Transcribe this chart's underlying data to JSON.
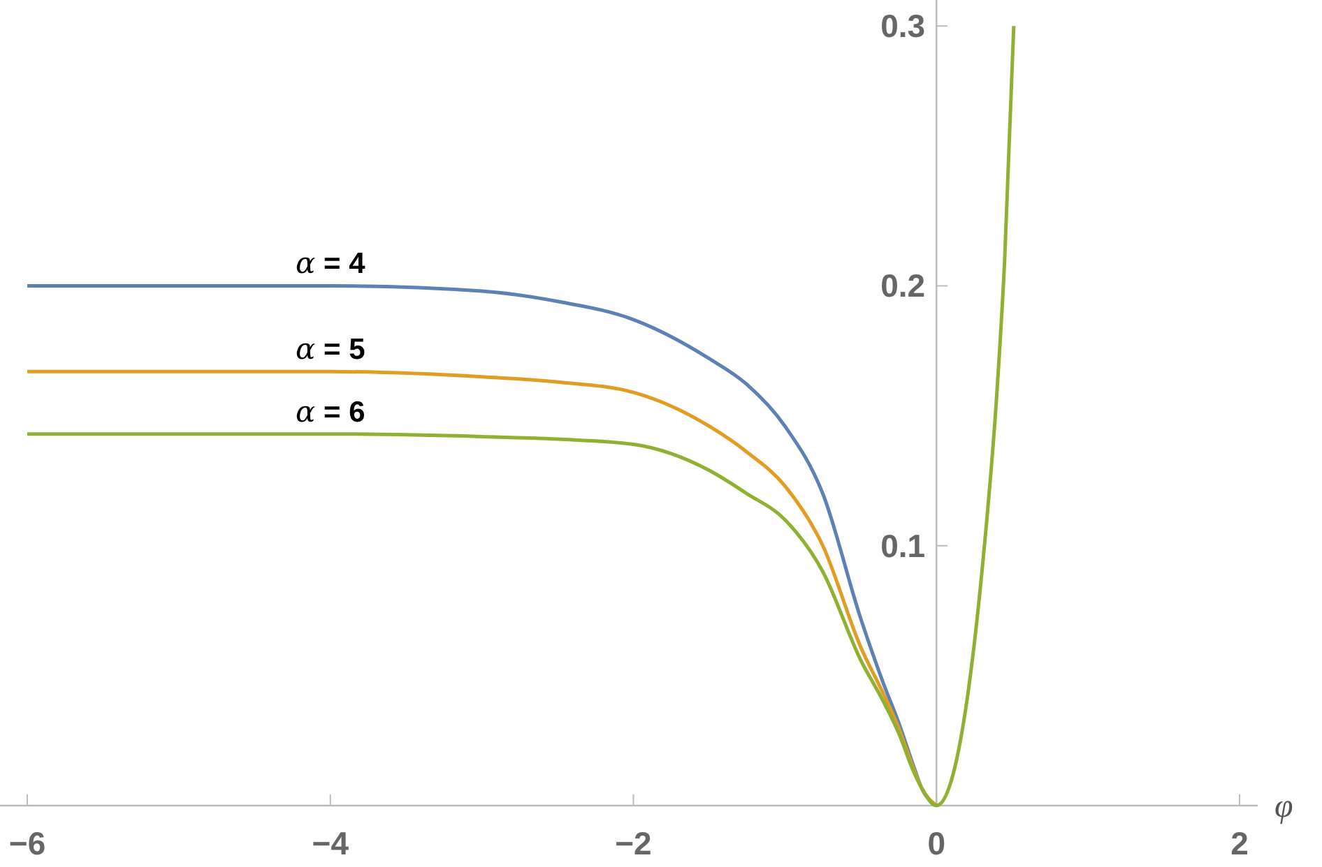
{
  "chart_data": {
    "type": "line",
    "xlabel": "φ",
    "x": [
      -6,
      -5,
      -4,
      -3,
      -2.5,
      -2,
      -1.5,
      -1.25,
      -1,
      -0.75,
      -0.5,
      -0.35,
      -0.25,
      -0.15,
      -0.1,
      0,
      0.1,
      0.2,
      0.3,
      0.4,
      0.45,
      0.51
    ],
    "series": [
      {
        "name": "α = 4",
        "color": "#5e81b5",
        "values": [
          0.2,
          0.2,
          0.2,
          0.198,
          0.194,
          0.187,
          0.172,
          0.162,
          0.146,
          0.12,
          0.072,
          0.047,
          0.032,
          0.015,
          0.007,
          0,
          null,
          null,
          null,
          null,
          null,
          null
        ]
      },
      {
        "name": "α = 5",
        "color": "#e19c24",
        "values": [
          0.167,
          0.167,
          0.167,
          0.165,
          0.163,
          0.159,
          0.146,
          0.136,
          0.123,
          0.1,
          0.061,
          0.043,
          0.03,
          0.014,
          0.007,
          0,
          null,
          null,
          null,
          null,
          null,
          null
        ]
      },
      {
        "name": "α = 6",
        "color": "#8fb032",
        "values": [
          0.143,
          0.143,
          0.143,
          0.142,
          0.141,
          0.139,
          0.129,
          0.12,
          0.11,
          0.09,
          0.056,
          0.04,
          0.028,
          0.013,
          0.007,
          0,
          0.01,
          0.04,
          0.09,
          0.16,
          0.21,
          0.3
        ]
      }
    ],
    "xlim": [
      -6.18,
      2.12
    ],
    "ylim": [
      0,
      0.31
    ],
    "xticks": [
      {
        "value": -6,
        "label": "−6"
      },
      {
        "value": -4,
        "label": "−4"
      },
      {
        "value": -2,
        "label": "−2"
      },
      0,
      2
    ],
    "yticks": [
      0.1,
      0.2,
      0.3
    ],
    "grid": false,
    "marker": "none",
    "line_style": "solid"
  }
}
